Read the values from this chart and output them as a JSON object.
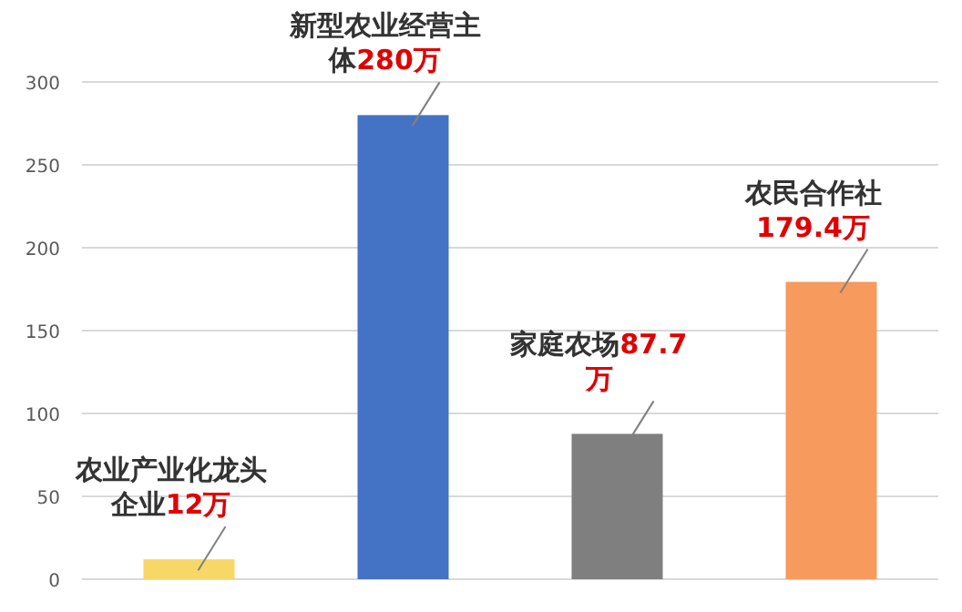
{
  "chart_data": {
    "type": "bar",
    "categories": [
      null,
      null,
      null,
      null
    ],
    "values": [
      12,
      280,
      87.7,
      179.4
    ],
    "colors": [
      "#f7d766",
      "#4472c4",
      "#7f7f7f",
      "#f79a5e"
    ],
    "value_labels": [
      "12万",
      "280万",
      "87.7万",
      "179.4万"
    ],
    "annotations": [
      "农业产业化龙头企业",
      "新型农业经营主体",
      "家庭农场",
      "农民合作社"
    ],
    "ylim": [
      0,
      300
    ],
    "yticks": [
      0,
      50,
      100,
      150,
      200,
      250,
      300
    ],
    "grid": "y"
  }
}
